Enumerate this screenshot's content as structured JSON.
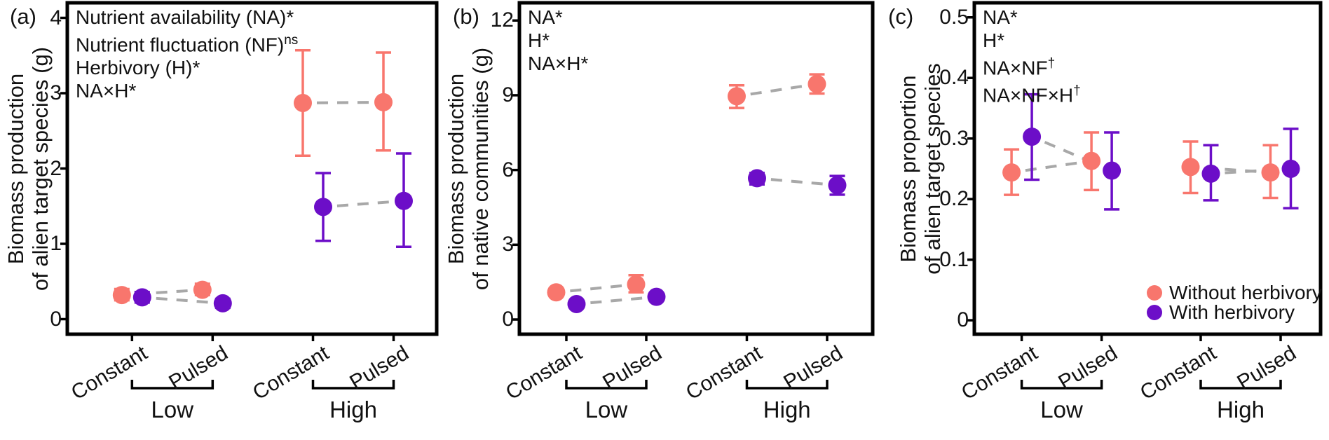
{
  "figure": {
    "background": "#ffffff",
    "axis_color": "#000000",
    "text_color": "#111111",
    "connector_color": "#a8a8a8",
    "series": [
      {
        "key": "without",
        "label": "Without herbivory",
        "color": "#F8766D"
      },
      {
        "key": "with",
        "label": "With herbivory",
        "color": "#6C0EC8"
      }
    ]
  },
  "legend": {
    "items": [
      {
        "series": "without",
        "label": "Without herbivory"
      },
      {
        "series": "with",
        "label": "With herbivory"
      }
    ]
  },
  "chart_data": [
    {
      "type": "scatter",
      "panel_label": "(a)",
      "ylabel_lines": [
        "Biomass production",
        "of alien target species (g)"
      ],
      "annotations": [
        {
          "text": "Nutrient availability (NA)*",
          "sup": ""
        },
        {
          "text": "Nutrient fluctuation (NF)",
          "sup": "ns"
        },
        {
          "text": "Herbivory (H)*",
          "sup": ""
        },
        {
          "text": "NA×H*",
          "sup": ""
        }
      ],
      "ylim": [
        -0.2,
        4.2
      ],
      "yticks": [
        0,
        1,
        2,
        3,
        4
      ],
      "ytick_labels": [
        "0",
        "1",
        "2",
        "3",
        "4"
      ],
      "groups": [
        {
          "label": "Low",
          "levels": [
            "Constant",
            "Pulsed"
          ]
        },
        {
          "label": "High",
          "levels": [
            "Constant",
            "Pulsed"
          ]
        }
      ],
      "series_points": {
        "without": [
          {
            "x": 0,
            "value": 0.32,
            "ci": [
              0.25,
              0.4
            ]
          },
          {
            "x": 1,
            "value": 0.39,
            "ci": [
              0.32,
              0.47
            ]
          },
          {
            "x": 2,
            "value": 2.87,
            "ci": [
              2.17,
              3.57
            ]
          },
          {
            "x": 3,
            "value": 2.88,
            "ci": [
              2.24,
              3.54
            ]
          }
        ],
        "with": [
          {
            "x": 0,
            "value": 0.29,
            "ci": [
              0.22,
              0.36
            ]
          },
          {
            "x": 1,
            "value": 0.21,
            "ci": [
              0.15,
              0.27
            ]
          },
          {
            "x": 2,
            "value": 1.49,
            "ci": [
              1.04,
              1.94
            ]
          },
          {
            "x": 3,
            "value": 1.57,
            "ci": [
              0.96,
              2.2
            ]
          }
        ]
      }
    },
    {
      "type": "scatter",
      "panel_label": "(b)",
      "ylabel_lines": [
        "Biomass production",
        "of native communities (g)"
      ],
      "annotations": [
        {
          "text": "NA*",
          "sup": ""
        },
        {
          "text": "H*",
          "sup": ""
        },
        {
          "text": "NA×H*",
          "sup": ""
        }
      ],
      "ylim": [
        -0.59,
        12.71
      ],
      "yticks": [
        0,
        3,
        6,
        9,
        12
      ],
      "ytick_labels": [
        "0",
        "3",
        "6",
        "9",
        "12"
      ],
      "groups": [
        {
          "label": "Low",
          "levels": [
            "Constant",
            "Pulsed"
          ]
        },
        {
          "label": "High",
          "levels": [
            "Constant",
            "Pulsed"
          ]
        }
      ],
      "series_points": {
        "without": [
          {
            "x": 0,
            "value": 1.09,
            "ci": [
              0.95,
              1.24
            ]
          },
          {
            "x": 1,
            "value": 1.41,
            "ci": [
              1.09,
              1.78
            ]
          },
          {
            "x": 2,
            "value": 8.96,
            "ci": [
              8.49,
              9.4
            ]
          },
          {
            "x": 3,
            "value": 9.45,
            "ci": [
              9.07,
              9.84
            ]
          }
        ],
        "with": [
          {
            "x": 0,
            "value": 0.62,
            "ci": [
              0.52,
              0.73
            ]
          },
          {
            "x": 1,
            "value": 0.91,
            "ci": [
              0.78,
              1.03
            ]
          },
          {
            "x": 2,
            "value": 5.67,
            "ci": [
              5.42,
              5.88
            ]
          },
          {
            "x": 3,
            "value": 5.39,
            "ci": [
              5.01,
              5.76
            ]
          }
        ]
      }
    },
    {
      "type": "scatter",
      "panel_label": "(c)",
      "ylabel_lines": [
        "Biomass proportion",
        "of alien target species"
      ],
      "annotations": [
        {
          "text": "NA*",
          "sup": ""
        },
        {
          "text": "H*",
          "sup": ""
        },
        {
          "text": "NA×NF",
          "sup": "†"
        },
        {
          "text": "NA×NF×H",
          "sup": "†"
        }
      ],
      "ylim": [
        -0.023,
        0.524
      ],
      "yticks": [
        0,
        0.1,
        0.2,
        0.3,
        0.4,
        0.5
      ],
      "ytick_labels": [
        "0",
        "0.1",
        "0.2",
        "0.3",
        "0.4",
        "0.5"
      ],
      "groups": [
        {
          "label": "Low",
          "levels": [
            "Constant",
            "Pulsed"
          ]
        },
        {
          "label": "High",
          "levels": [
            "Constant",
            "Pulsed"
          ]
        }
      ],
      "series_points": {
        "without": [
          {
            "x": 0,
            "value": 0.244,
            "ci": [
              0.207,
              0.282
            ]
          },
          {
            "x": 1,
            "value": 0.263,
            "ci": [
              0.215,
              0.31
            ]
          },
          {
            "x": 2,
            "value": 0.253,
            "ci": [
              0.21,
              0.295
            ]
          },
          {
            "x": 3,
            "value": 0.244,
            "ci": [
              0.202,
              0.289
            ]
          }
        ],
        "with": [
          {
            "x": 0,
            "value": 0.303,
            "ci": [
              0.232,
              0.373
            ]
          },
          {
            "x": 1,
            "value": 0.247,
            "ci": [
              0.183,
              0.31
            ]
          },
          {
            "x": 2,
            "value": 0.242,
            "ci": [
              0.198,
              0.289
            ]
          },
          {
            "x": 3,
            "value": 0.25,
            "ci": [
              0.185,
              0.316
            ]
          }
        ]
      }
    }
  ]
}
